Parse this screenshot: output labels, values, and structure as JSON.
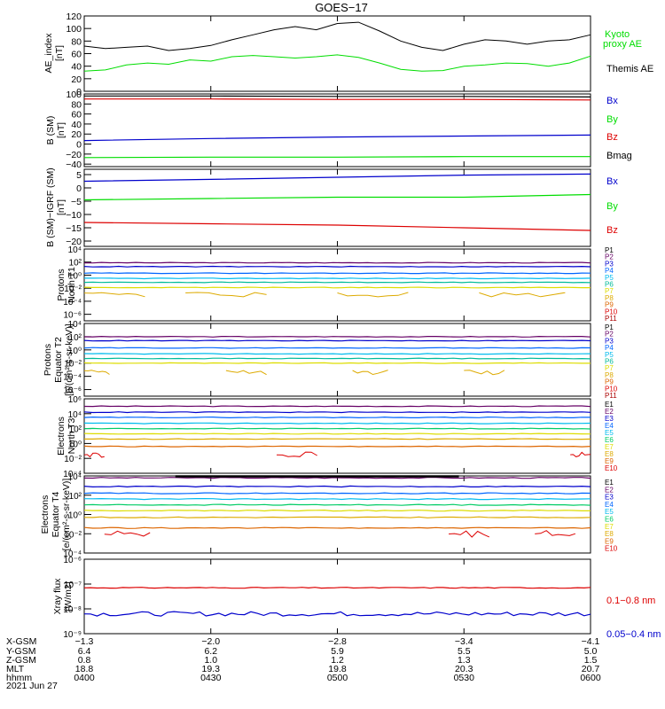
{
  "title": "GOES−17",
  "footer": {
    "row_labels": [
      "X-GSM",
      "Y-GSM",
      "Z-GSM",
      "MLT",
      "hhmm",
      "2021 Jun 27"
    ],
    "columns": [
      {
        "x_gsm": "−1.3",
        "y_gsm": "6.4",
        "z_gsm": "0.8",
        "mlt": "18.8",
        "hhmm": "0400"
      },
      {
        "x_gsm": "−2.0",
        "y_gsm": "6.2",
        "z_gsm": "1.0",
        "mlt": "19.3",
        "hhmm": "0430"
      },
      {
        "x_gsm": "−2.8",
        "y_gsm": "5.9",
        "z_gsm": "1.2",
        "mlt": "19.8",
        "hhmm": "0500"
      },
      {
        "x_gsm": "−3.4",
        "y_gsm": "5.5",
        "z_gsm": "1.3",
        "mlt": "20.3",
        "hhmm": "0530"
      },
      {
        "x_gsm": "−4.1",
        "y_gsm": "5.0",
        "z_gsm": "1.5",
        "mlt": "20.7",
        "hhmm": "0600"
      }
    ]
  },
  "chart_data": [
    {
      "type": "line",
      "panel": "ae",
      "ylabel": "AE_index\n[nT]",
      "ylim": [
        0,
        120
      ],
      "scale": "linear",
      "yticks": [
        "0",
        "20",
        "40",
        "60",
        "80",
        "100",
        "120"
      ],
      "x_times": [
        "0400",
        "0405",
        "0410",
        "0415",
        "0420",
        "0425",
        "0430",
        "0435",
        "0440",
        "0445",
        "0450",
        "0455",
        "0500",
        "0505",
        "0510",
        "0515",
        "0520",
        "0525",
        "0530",
        "0535",
        "0540",
        "0545",
        "0550",
        "0555",
        "0600"
      ],
      "series": [
        {
          "name": "Kyoto proxy AE",
          "color": "#00dd00",
          "values": [
            32,
            34,
            42,
            45,
            43,
            50,
            48,
            55,
            57,
            55,
            53,
            55,
            58,
            54,
            45,
            35,
            32,
            33,
            40,
            42,
            45,
            44,
            40,
            45,
            56
          ]
        },
        {
          "name": "Themis AE",
          "color": "#000000",
          "values": [
            72,
            68,
            70,
            72,
            65,
            68,
            73,
            82,
            90,
            98,
            103,
            98,
            108,
            110,
            96,
            80,
            70,
            65,
            75,
            82,
            80,
            75,
            80,
            82,
            90
          ]
        }
      ]
    },
    {
      "type": "line",
      "panel": "b_sm",
      "ylabel": "B (SM)\n[nT]",
      "ylim": [
        -45,
        100
      ],
      "scale": "linear",
      "yticks": [
        "−40",
        "−20",
        "0",
        "20",
        "40",
        "60",
        "80",
        "100"
      ],
      "series": [
        {
          "name": "Bx",
          "color": "#0000cc",
          "values": [
            7,
            11,
            14,
            16,
            18
          ]
        },
        {
          "name": "By",
          "color": "#00dd00",
          "values": [
            -27,
            -26,
            -26,
            -25,
            -25
          ]
        },
        {
          "name": "Bz",
          "color": "#dd0000",
          "values": [
            90,
            90,
            89,
            89,
            88
          ]
        },
        {
          "name": "Bmag",
          "color": "#000000",
          "values": [
            96,
            96,
            95,
            95,
            94
          ]
        }
      ]
    },
    {
      "type": "line",
      "panel": "b_igrf",
      "ylabel": "B (SM)−IGRF (SM)\n[nT]",
      "ylim": [
        -22,
        7
      ],
      "scale": "linear",
      "yticks": [
        "−20",
        "−15",
        "−10",
        "−5",
        "0",
        "5"
      ],
      "series": [
        {
          "name": "Bx",
          "color": "#0000cc",
          "values": [
            2.5,
            3.2,
            4.0,
            4.8,
            5.2
          ]
        },
        {
          "name": "By",
          "color": "#00dd00",
          "values": [
            -4.5,
            -4.0,
            -3.5,
            -3.5,
            -2.5
          ]
        },
        {
          "name": "Bz",
          "color": "#dd0000",
          "values": [
            -13,
            -13.5,
            -14,
            -15,
            -16
          ]
        }
      ]
    },
    {
      "type": "line",
      "panel": "protons_t1",
      "ylabel": "Protons\nNorth T1",
      "ylim_exp": [
        -7,
        4
      ],
      "scale": "log",
      "yticks": [
        "10⁴",
        "10²",
        "10⁰",
        "10⁻²",
        "10⁻⁴",
        "10⁻⁶"
      ],
      "legend": [
        "P1",
        "P2",
        "P3",
        "P4",
        "P5",
        "P6",
        "P7",
        "P8",
        "P9",
        "P10",
        "P11"
      ],
      "series_log10": [
        1.9,
        1.3,
        0.3,
        -0.5,
        -1.1,
        -1.9,
        -3.0
      ]
    },
    {
      "type": "line",
      "panel": "protons_t2",
      "ylabel": "Protons\nEquator T2\n[p/(cm²-s-sr-keV)]",
      "ylim_exp": [
        -7,
        4
      ],
      "scale": "log",
      "yticks": [
        "10⁴",
        "10²",
        "10⁰",
        "10⁻²",
        "10⁻⁴",
        "10⁻⁶"
      ],
      "legend": [
        "P1",
        "P2",
        "P3",
        "P4",
        "P5",
        "P6",
        "P7",
        "P8",
        "P9",
        "P10",
        "P11"
      ],
      "series_log10": [
        2.0,
        1.4,
        0.3,
        -0.6,
        -1.3,
        -2.0,
        -3.4
      ]
    },
    {
      "type": "line",
      "panel": "electrons_t3",
      "ylabel": "Electrons\nNorth T3",
      "ylim_exp": [
        -4,
        6
      ],
      "scale": "log",
      "yticks": [
        "10⁶",
        "10⁴",
        "10²",
        "10⁰",
        "10⁻²",
        "10⁻⁴"
      ],
      "legend": [
        "E1",
        "E2",
        "E3",
        "E4",
        "E5",
        "E6",
        "E7",
        "E8",
        "E9",
        "E10"
      ],
      "series_log10": [
        5.0,
        4.2,
        3.5,
        2.7,
        2.0,
        1.3,
        0.6,
        -0.4,
        -1.5
      ]
    },
    {
      "type": "line",
      "panel": "electrons_t4",
      "ylabel": "Electrons\nEquator T4\n[e/(cm²-s-sr-keV)]",
      "ylim_exp": [
        -4,
        4
      ],
      "scale": "log",
      "yticks": [
        "10⁴",
        "10²",
        "10⁰",
        "10⁻²",
        "10⁻⁴"
      ],
      "legend": [
        "E1",
        "E2",
        "E3",
        "E4",
        "E5",
        "E6",
        "E7",
        "E8",
        "E9",
        "E10"
      ],
      "series_log10": [
        3.8,
        2.9,
        2.2,
        1.6,
        1.0,
        0.4,
        -0.3,
        -1.4,
        -2.0
      ]
    },
    {
      "type": "line",
      "panel": "xray",
      "ylabel": "Xray flux\n[W/m2]",
      "ylim_exp": [
        -9,
        -6
      ],
      "scale": "log",
      "yticks": [
        "10⁻⁶",
        "10⁻⁷",
        "10⁻⁸",
        "10⁻⁹"
      ],
      "series": [
        {
          "name": "0.1−0.8 nm",
          "color": "#dd0000",
          "log10": -7.15
        },
        {
          "name": "0.05−0.4 nm",
          "color": "#0000cc",
          "log10": -8.2
        }
      ]
    }
  ]
}
